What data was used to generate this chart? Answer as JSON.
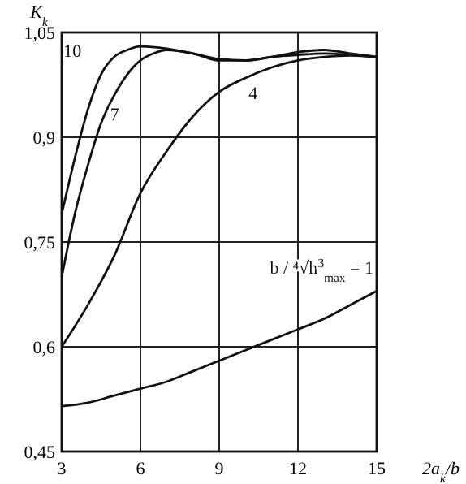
{
  "chart_data": {
    "type": "line",
    "xlabel": "2a$_{k}$/b",
    "ylabel": "K$_{k}$",
    "xlim": [
      3,
      15
    ],
    "xticks": [
      3,
      6,
      9,
      12,
      15
    ],
    "ylim": [
      0.45,
      1.05
    ],
    "yticks": [
      {
        "value": 0.45,
        "label": "0,45"
      },
      {
        "value": 0.6,
        "label": "0,6"
      },
      {
        "value": 0.75,
        "label": "0,75"
      },
      {
        "value": 0.9,
        "label": "0,9"
      },
      {
        "value": 1.05,
        "label": "1,05"
      }
    ],
    "grid": true,
    "marker": "none",
    "line_style": "solid",
    "series": [
      {
        "name": "10",
        "color": "#111111",
        "x": [
          3,
          3.5,
          4,
          4.5,
          5,
          5.5,
          6,
          7,
          8,
          9,
          10,
          11,
          12,
          13,
          14,
          15
        ],
        "values": [
          0.79,
          0.87,
          0.94,
          0.99,
          1.015,
          1.025,
          1.03,
          1.027,
          1.02,
          1.012,
          1.01,
          1.015,
          1.022,
          1.025,
          1.02,
          1.015
        ]
      },
      {
        "name": "7",
        "color": "#111111",
        "x": [
          3,
          3.5,
          4,
          4.5,
          5,
          5.5,
          6,
          6.5,
          7,
          8,
          9,
          10,
          11,
          12,
          13,
          14,
          15
        ],
        "values": [
          0.7,
          0.79,
          0.86,
          0.92,
          0.96,
          0.99,
          1.01,
          1.02,
          1.025,
          1.02,
          1.01,
          1.01,
          1.015,
          1.018,
          1.02,
          1.018,
          1.015
        ]
      },
      {
        "name": "4",
        "color": "#111111",
        "x": [
          3,
          4,
          5,
          6,
          7,
          8,
          9,
          10,
          11,
          12,
          13,
          14,
          15
        ],
        "values": [
          0.6,
          0.66,
          0.73,
          0.82,
          0.88,
          0.93,
          0.965,
          0.985,
          1.0,
          1.01,
          1.015,
          1.017,
          1.015
        ]
      },
      {
        "name": "b / ⁴√h$^{3}$$_{max}$ = 1",
        "color": "#111111",
        "x": [
          3,
          4,
          5,
          6,
          7,
          8,
          9,
          10,
          11,
          12,
          13,
          14,
          15
        ],
        "values": [
          0.515,
          0.52,
          0.53,
          0.54,
          0.55,
          0.565,
          0.58,
          0.595,
          0.61,
          0.625,
          0.64,
          0.66,
          0.68
        ]
      }
    ]
  }
}
